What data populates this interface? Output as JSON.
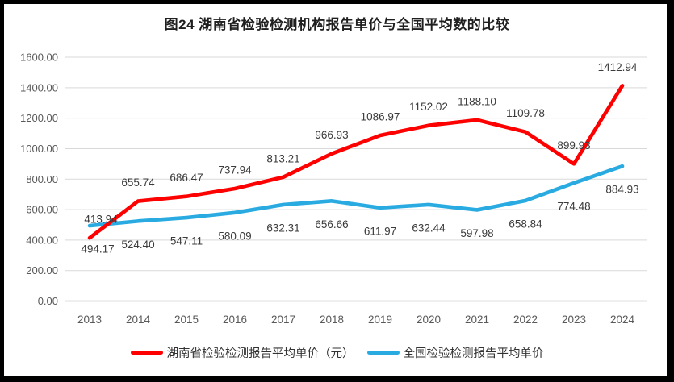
{
  "title": "图24 湖南省检验检测机构报告单价与全国平均数的比较",
  "chart_data": {
    "type": "line",
    "title": "图24 湖南省检验检测机构报告单价与全国平均数的比较",
    "categories": [
      "2013",
      "2014",
      "2015",
      "2016",
      "2017",
      "2018",
      "2019",
      "2020",
      "2021",
      "2022",
      "2023",
      "2024"
    ],
    "series": [
      {
        "name": "湖南省检验检测报告平均单价（元）",
        "color": "#FF0000",
        "label_placement": "above",
        "values": [
          413.94,
          655.74,
          686.47,
          737.94,
          813.21,
          966.93,
          1086.97,
          1152.02,
          1188.1,
          1109.78,
          899.93,
          1412.94
        ]
      },
      {
        "name": "全国检验检测报告平均单价",
        "color": "#29ABE2",
        "label_placement": "below",
        "values": [
          494.17,
          524.4,
          547.11,
          580.09,
          632.31,
          656.66,
          611.97,
          632.44,
          597.98,
          658.84,
          774.48,
          884.93
        ]
      }
    ],
    "xlabel": "",
    "ylabel": "",
    "ylim": [
      0,
      1600
    ],
    "ytick_step": 200,
    "ytick_format_decimals": 2,
    "grid": true,
    "legend_position": "bottom"
  },
  "colors": {
    "hunan_series": "#FF0000",
    "national_series": "#29ABE2",
    "gridline": "#D9D9D9",
    "axis_line": "#BFBFBF",
    "axis_text": "#595959",
    "data_label_text": "#3B3B3B",
    "frame": "#000000"
  }
}
